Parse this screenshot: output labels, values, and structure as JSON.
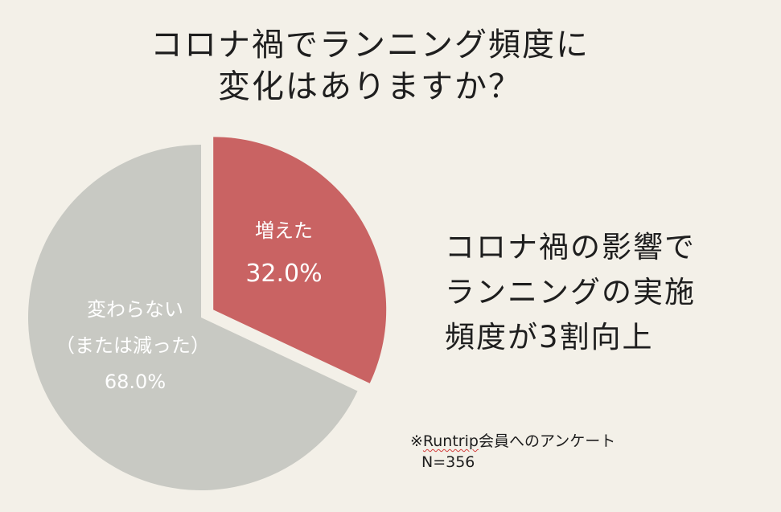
{
  "title": {
    "line1": "コロナ禍でランニング頻度に",
    "line2": "変化はありますか？"
  },
  "chart_data": {
    "type": "pie",
    "title": "コロナ禍でランニング頻度に変化はありますか？",
    "slices": [
      {
        "label": "増えた",
        "value": 32.0,
        "value_label": "32.0%",
        "color": "#c96363",
        "exploded": true
      },
      {
        "label_lines": [
          "変わらない",
          "（または減った）"
        ],
        "value": 68.0,
        "value_label": "68.0%",
        "color": "#c8c9c3",
        "exploded": false
      }
    ],
    "start_angle_deg": 0,
    "direction": "clockwise"
  },
  "callout": {
    "line1": "コロナ禍の影響で",
    "line2": "ランニングの実施",
    "line3": "頻度が3割向上"
  },
  "note": {
    "prefix": "※",
    "brand": "Runtrip",
    "suffix": "会員へのアンケート",
    "sample": "N=356"
  }
}
